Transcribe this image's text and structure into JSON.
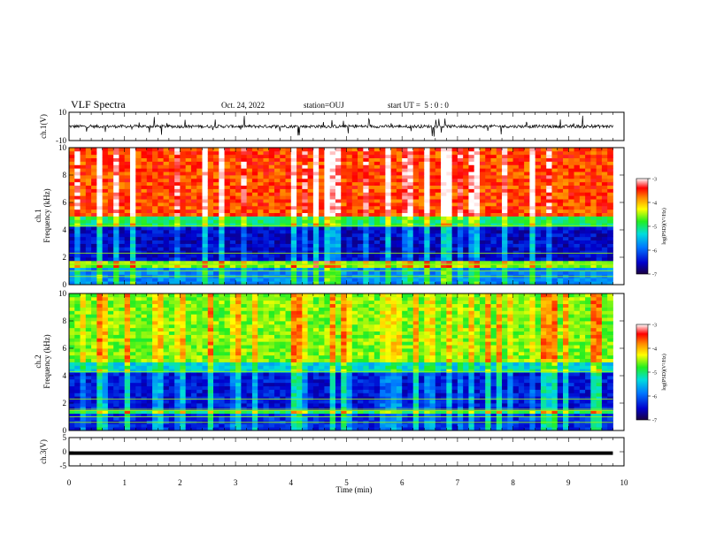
{
  "header": {
    "title": "VLF Spectra",
    "date": "Oct. 24, 2022",
    "station": "station=OUJ",
    "start_ut": "start UT =  5 : 0 : 0"
  },
  "chart_data": [
    {
      "type": "line",
      "panel": "ch1-waveform",
      "ylabel": "ch.1(V)",
      "ylim": [
        -10,
        10
      ],
      "yticks": [
        10,
        -10
      ],
      "xlim": [
        0,
        10
      ],
      "baseline": 0,
      "data_end_min": 9.8,
      "color": "#000000"
    },
    {
      "type": "heatmap",
      "panel": "ch1-spectrogram",
      "ylabel_line1": "ch.1",
      "ylabel_line2": "Frequency (kHz)",
      "ylim": [
        0,
        10
      ],
      "yticks": [
        0,
        2,
        4,
        6,
        8,
        10
      ],
      "xlim": [
        0,
        10
      ],
      "data_end_min": 9.8,
      "description_bands": [
        {
          "from_khz": 0,
          "to_khz": 1.2,
          "level": -5.8
        },
        {
          "from_khz": 1.2,
          "to_khz": 1.7,
          "level": -4.6
        },
        {
          "from_khz": 1.7,
          "to_khz": 4.3,
          "level": -6.5
        },
        {
          "from_khz": 4.3,
          "to_khz": 5.0,
          "level": -5.0
        },
        {
          "from_khz": 5.0,
          "to_khz": 10,
          "level": -3.6
        }
      ],
      "colorbar": {
        "label": "log(PSD)(V²/Hz)",
        "min": -7,
        "max": -3,
        "ticks": [
          -3,
          -4,
          -5,
          -6,
          -7
        ]
      }
    },
    {
      "type": "heatmap",
      "panel": "ch2-spectrogram",
      "ylabel_line1": "ch.2",
      "ylabel_line2": "Frequency (kHz)",
      "ylim": [
        0,
        10
      ],
      "yticks": [
        0,
        2,
        4,
        6,
        8,
        10
      ],
      "xlim": [
        0,
        10
      ],
      "data_end_min": 9.8,
      "description_bands": [
        {
          "from_khz": 0,
          "to_khz": 1.2,
          "level": -6.3
        },
        {
          "from_khz": 1.2,
          "to_khz": 1.6,
          "level": -5.0
        },
        {
          "from_khz": 1.6,
          "to_khz": 4.2,
          "level": -6.4
        },
        {
          "from_khz": 4.2,
          "to_khz": 5.0,
          "level": -5.4
        },
        {
          "from_khz": 5.0,
          "to_khz": 10,
          "level": -4.6
        }
      ],
      "colorbar": {
        "label": "log(PSD)(V²/Hz)",
        "min": -7,
        "max": -3,
        "ticks": [
          -3,
          -4,
          -5,
          -6,
          -7
        ]
      }
    },
    {
      "type": "line",
      "panel": "ch3-waveform",
      "ylabel": "ch.3(V)",
      "ylim": [
        -5,
        5
      ],
      "yticks": [
        5,
        0,
        -5
      ],
      "xlim": [
        0,
        10
      ],
      "baseline": -0.5,
      "data_end_min": 9.8,
      "color": "#000000"
    }
  ],
  "x_axis": {
    "label": "Time (min)",
    "ticks": [
      "0",
      "1",
      "2",
      "3",
      "4",
      "5",
      "6",
      "7",
      "8",
      "9",
      "10"
    ]
  },
  "colorbar_ticks_text": [
    "-3",
    "-4",
    "-5",
    "-6",
    "-7"
  ]
}
